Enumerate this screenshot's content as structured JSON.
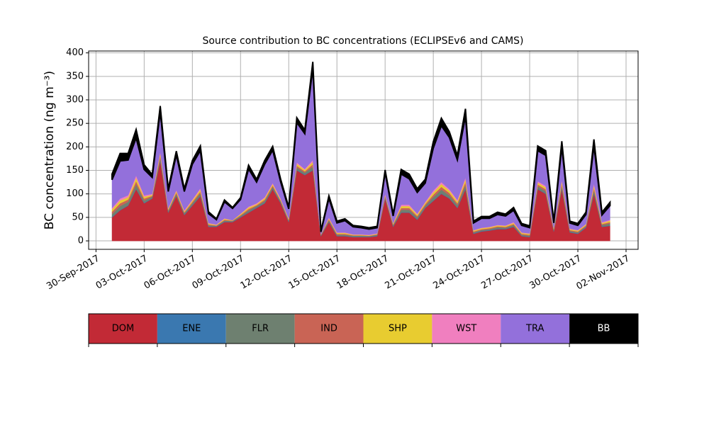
{
  "chart_data": {
    "type": "stacked_area",
    "title": "Source contribution to BC concentrations (ECLIPSEv6 and CAMS)",
    "ylabel": "BC concentration (ng m⁻³)",
    "x": [
      "2017-10-01T00:00",
      "2017-10-01T12:00",
      "2017-10-02T00:00",
      "2017-10-02T12:00",
      "2017-10-03T00:00",
      "2017-10-03T12:00",
      "2017-10-04T00:00",
      "2017-10-04T12:00",
      "2017-10-05T00:00",
      "2017-10-05T12:00",
      "2017-10-06T00:00",
      "2017-10-06T12:00",
      "2017-10-07T00:00",
      "2017-10-07T12:00",
      "2017-10-08T00:00",
      "2017-10-08T12:00",
      "2017-10-09T00:00",
      "2017-10-09T12:00",
      "2017-10-10T00:00",
      "2017-10-10T12:00",
      "2017-10-11T00:00",
      "2017-10-11T12:00",
      "2017-10-12T00:00",
      "2017-10-12T12:00",
      "2017-10-13T00:00",
      "2017-10-13T12:00",
      "2017-10-14T00:00",
      "2017-10-14T12:00",
      "2017-10-15T00:00",
      "2017-10-15T12:00",
      "2017-10-16T00:00",
      "2017-10-16T12:00",
      "2017-10-17T00:00",
      "2017-10-17T12:00",
      "2017-10-18T00:00",
      "2017-10-18T12:00",
      "2017-10-19T00:00",
      "2017-10-19T12:00",
      "2017-10-20T00:00",
      "2017-10-20T12:00",
      "2017-10-21T00:00",
      "2017-10-21T12:00",
      "2017-10-22T00:00",
      "2017-10-22T12:00",
      "2017-10-23T00:00",
      "2017-10-23T12:00",
      "2017-10-24T00:00",
      "2017-10-24T12:00",
      "2017-10-25T00:00",
      "2017-10-25T12:00",
      "2017-10-26T00:00",
      "2017-10-26T12:00",
      "2017-10-27T00:00",
      "2017-10-27T12:00",
      "2017-10-28T00:00",
      "2017-10-28T12:00",
      "2017-10-29T00:00",
      "2017-10-29T12:00",
      "2017-10-30T00:00",
      "2017-10-30T12:00",
      "2017-10-31T00:00",
      "2017-10-31T12:00",
      "2017-11-01T00:00"
    ],
    "series": [
      {
        "name": "DOM",
        "color": "#c22a36",
        "values": [
          50,
          65,
          75,
          110,
          80,
          90,
          170,
          60,
          95,
          55,
          75,
          95,
          30,
          30,
          40,
          40,
          50,
          60,
          70,
          80,
          110,
          80,
          40,
          150,
          140,
          150,
          10,
          40,
          10,
          10,
          8,
          8,
          8,
          10,
          90,
          30,
          60,
          60,
          45,
          70,
          85,
          100,
          90,
          70,
          110,
          15,
          20,
          22,
          25,
          25,
          30,
          10,
          8,
          110,
          100,
          20,
          110,
          18,
          15,
          28,
          100,
          30,
          32
        ]
      },
      {
        "name": "ENE",
        "color": "#3a78b0",
        "values": [
          1,
          1,
          1,
          1,
          1,
          1,
          1,
          1,
          1,
          1,
          1,
          1,
          1,
          1,
          1,
          1,
          1,
          1,
          1,
          1,
          1,
          1,
          1,
          1,
          1,
          1,
          1,
          1,
          1,
          1,
          1,
          1,
          1,
          1,
          1,
          1,
          1,
          1,
          1,
          1,
          1,
          1,
          1,
          1,
          1,
          1,
          1,
          1,
          1,
          1,
          1,
          1,
          1,
          1,
          1,
          1,
          1,
          1,
          1,
          1,
          1,
          1,
          1
        ]
      },
      {
        "name": "FLR",
        "color": "#6e8070",
        "values": [
          6,
          8,
          7,
          9,
          5,
          3,
          6,
          3,
          4,
          3,
          4,
          5,
          2,
          1,
          2,
          1,
          2,
          4,
          3,
          4,
          4,
          3,
          2,
          5,
          4,
          7,
          1,
          3,
          2,
          2,
          2,
          2,
          1,
          2,
          3,
          2,
          5,
          5,
          4,
          4,
          7,
          8,
          6,
          5,
          8,
          2,
          2,
          2,
          3,
          2,
          3,
          2,
          2,
          5,
          5,
          2,
          6,
          2,
          2,
          2,
          7,
          3,
          4
        ]
      },
      {
        "name": "IND",
        "color": "#c96455",
        "values": [
          5,
          6,
          5,
          7,
          4,
          2,
          5,
          2,
          3,
          2,
          3,
          4,
          2,
          1,
          2,
          1,
          2,
          3,
          2,
          3,
          3,
          2,
          2,
          4,
          3,
          5,
          1,
          2,
          2,
          2,
          1,
          1,
          1,
          1,
          2,
          2,
          4,
          4,
          3,
          3,
          5,
          6,
          5,
          4,
          6,
          2,
          2,
          2,
          2,
          2,
          2,
          2,
          2,
          4,
          4,
          2,
          5,
          2,
          2,
          2,
          5,
          2,
          3
        ]
      },
      {
        "name": "SHP",
        "color": "#e8cc30",
        "values": [
          5,
          6,
          5,
          7,
          4,
          2,
          5,
          2,
          3,
          2,
          3,
          4,
          2,
          1,
          2,
          1,
          2,
          3,
          2,
          3,
          3,
          2,
          2,
          4,
          3,
          5,
          1,
          2,
          2,
          2,
          1,
          1,
          1,
          1,
          2,
          2,
          4,
          4,
          3,
          3,
          5,
          6,
          5,
          4,
          6,
          2,
          2,
          2,
          2,
          2,
          2,
          2,
          2,
          4,
          4,
          2,
          5,
          2,
          2,
          2,
          5,
          2,
          3
        ]
      },
      {
        "name": "WST",
        "color": "#f07fbf",
        "values": [
          3,
          4,
          4,
          5,
          3,
          2,
          3,
          2,
          2,
          2,
          2,
          3,
          1,
          1,
          1,
          0,
          1,
          2,
          2,
          2,
          2,
          2,
          1,
          3,
          2,
          4,
          0,
          2,
          1,
          1,
          1,
          1,
          1,
          1,
          2,
          1,
          3,
          3,
          2,
          2,
          4,
          4,
          3,
          3,
          4,
          1,
          1,
          1,
          1,
          1,
          2,
          1,
          1,
          3,
          3,
          1,
          3,
          1,
          1,
          1,
          4,
          2,
          2
        ]
      },
      {
        "name": "TRA",
        "color": "#9370db",
        "values": [
          60,
          80,
          75,
          80,
          55,
          35,
          85,
          35,
          75,
          40,
          75,
          80,
          20,
          10,
          35,
          25,
          30,
          80,
          45,
          70,
          70,
          35,
          20,
          85,
          75,
          195,
          5,
          40,
          20,
          25,
          16,
          14,
          12,
          12,
          45,
          15,
          65,
          55,
          45,
          40,
          90,
          120,
          110,
          85,
          130,
          15,
          20,
          18,
          22,
          20,
          25,
          15,
          12,
          65,
          65,
          10,
          70,
          12,
          10,
          20,
          80,
          15,
          30
        ]
      },
      {
        "name": "BB",
        "color": "#000000",
        "values": [
          12,
          16,
          14,
          18,
          10,
          6,
          12,
          6,
          8,
          6,
          8,
          10,
          4,
          2,
          4,
          2,
          4,
          8,
          6,
          8,
          8,
          6,
          4,
          10,
          8,
          14,
          2,
          6,
          4,
          4,
          3,
          3,
          3,
          3,
          6,
          4,
          10,
          10,
          8,
          8,
          14,
          16,
          12,
          10,
          16,
          4,
          4,
          4,
          5,
          4,
          6,
          4,
          4,
          10,
          10,
          4,
          12,
          4,
          4,
          5,
          14,
          6,
          7
        ]
      }
    ],
    "xlim": [
      "2017-09-29T13:00",
      "2017-11-02T18:00"
    ],
    "xticks": [
      {
        "value": "2017-09-30T00:00",
        "label": "30-Sep-2017"
      },
      {
        "value": "2017-10-03T00:00",
        "label": "03-Oct-2017"
      },
      {
        "value": "2017-10-06T00:00",
        "label": "06-Oct-2017"
      },
      {
        "value": "2017-10-09T00:00",
        "label": "09-Oct-2017"
      },
      {
        "value": "2017-10-12T00:00",
        "label": "12-Oct-2017"
      },
      {
        "value": "2017-10-15T00:00",
        "label": "15-Oct-2017"
      },
      {
        "value": "2017-10-18T00:00",
        "label": "18-Oct-2017"
      },
      {
        "value": "2017-10-21T00:00",
        "label": "21-Oct-2017"
      },
      {
        "value": "2017-10-24T00:00",
        "label": "24-Oct-2017"
      },
      {
        "value": "2017-10-27T00:00",
        "label": "27-Oct-2017"
      },
      {
        "value": "2017-10-30T00:00",
        "label": "30-Oct-2017"
      },
      {
        "value": "2017-11-02T00:00",
        "label": "02-Nov-2017"
      }
    ],
    "ylim": [
      -18,
      404
    ],
    "yticks": [
      0,
      50,
      100,
      150,
      200,
      250,
      300,
      350,
      400
    ],
    "grid": true
  }
}
